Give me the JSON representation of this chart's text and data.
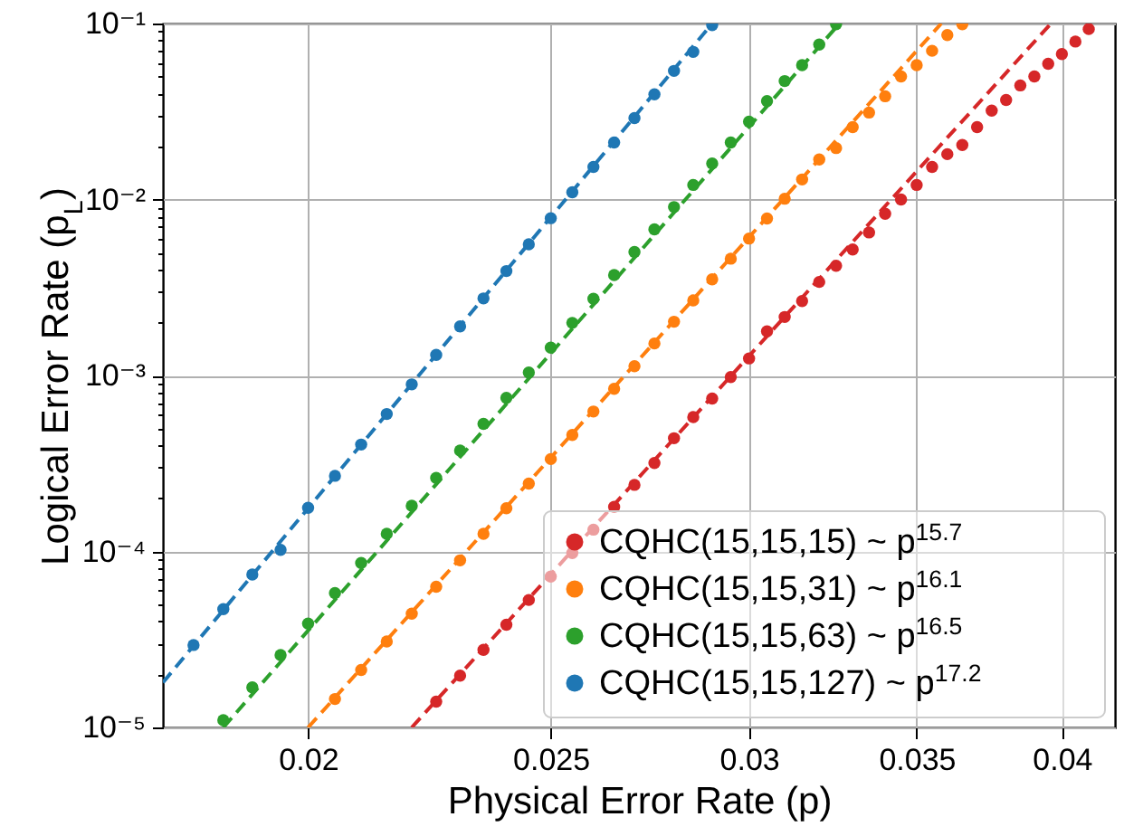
{
  "chart_data": {
    "type": "scatter",
    "xlabel": "Physical Error Rate (p)",
    "ylabel": "Logical Error Rate (p$_{L}$)",
    "log": "xy",
    "grid": true,
    "legend": "bottom right",
    "xlim": [
      0.0175,
      0.042
    ],
    "xticks": [
      0.02,
      0.025,
      0.03,
      0.035,
      0.04
    ],
    "ylim": [
      1e-05,
      0.1
    ],
    "yticks": [
      {
        "value": 1e-05,
        "label": "10⁻⁵"
      },
      {
        "value": 2e-05,
        "label": null
      },
      {
        "value": 3e-05,
        "label": null
      },
      {
        "value": 4e-05,
        "label": null
      },
      {
        "value": 5e-05,
        "label": null
      },
      {
        "value": 6e-05,
        "label": null
      },
      {
        "value": 7e-05,
        "label": null
      },
      {
        "value": 8e-05,
        "label": null
      },
      {
        "value": 9e-05,
        "label": null
      },
      {
        "value": 0.0001,
        "label": "10⁻⁴"
      },
      {
        "value": 0.0002,
        "label": null
      },
      {
        "value": 0.0003,
        "label": null
      },
      {
        "value": 0.0004,
        "label": null
      },
      {
        "value": 0.0005,
        "label": null
      },
      {
        "value": 0.0006,
        "label": null
      },
      {
        "value": 0.0007,
        "label": null
      },
      {
        "value": 0.0008,
        "label": null
      },
      {
        "value": 0.0009,
        "label": null
      },
      {
        "value": 0.001,
        "label": "10⁻³"
      },
      {
        "value": 0.002,
        "label": null
      },
      {
        "value": 0.003,
        "label": null
      },
      {
        "value": 0.004,
        "label": null
      },
      {
        "value": 0.005,
        "label": null
      },
      {
        "value": 0.006,
        "label": null
      },
      {
        "value": 0.007,
        "label": null
      },
      {
        "value": 0.008,
        "label": null
      },
      {
        "value": 0.009,
        "label": null
      },
      {
        "value": 0.01,
        "label": "10⁻²"
      },
      {
        "value": 0.02,
        "label": null
      },
      {
        "value": 0.03,
        "label": null
      },
      {
        "value": 0.04,
        "label": null
      },
      {
        "value": 0.05,
        "label": null
      },
      {
        "value": 0.06,
        "label": null
      },
      {
        "value": 0.07,
        "label": null
      },
      {
        "value": 0.08,
        "label": null
      },
      {
        "value": 0.09,
        "label": null
      },
      {
        "value": 0.1,
        "label": "10⁻¹"
      }
    ],
    "series": [
      {
        "type": "line",
        "line_style": "dashed",
        "color": "#d62728",
        "x": [
          0.022,
          0.0396
        ],
        "values": [
          1e-05,
          0.1
        ]
      },
      {
        "type": "line",
        "line_style": "dashed",
        "color": "#ff7f0e",
        "x": [
          0.02,
          0.0358
        ],
        "values": [
          1e-05,
          0.1
        ]
      },
      {
        "type": "line",
        "line_style": "dashed",
        "color": "#2ca02c",
        "x": [
          0.0185,
          0.0326
        ],
        "values": [
          1e-05,
          0.1
        ]
      },
      {
        "type": "line",
        "line_style": "dashed",
        "color": "#1f77b4",
        "x": [
          0.0175,
          0.029
        ],
        "values": [
          1.8e-05,
          0.1
        ]
      },
      {
        "name": "CQHC(15,15,15)  ~ p$^{15.7}$",
        "marker": "circle",
        "color": "#d62728",
        "x": [
          0.0225,
          0.023,
          0.0235,
          0.024,
          0.0245,
          0.025,
          0.0255,
          0.026,
          0.0265,
          0.027,
          0.0275,
          0.028,
          0.0285,
          0.029,
          0.0295,
          0.03,
          0.0305,
          0.031,
          0.0315,
          0.032,
          0.0325,
          0.033,
          0.0335,
          0.034,
          0.0345,
          0.035,
          0.0355,
          0.036,
          0.0365,
          0.037,
          0.0375,
          0.038,
          0.0385,
          0.039,
          0.0395,
          0.04,
          0.0405,
          0.041
        ],
        "values": [
          1.4e-05,
          1.97e-05,
          2.76e-05,
          3.83e-05,
          5.3e-05,
          7.2e-05,
          9.8e-05,
          0.000133,
          0.000179,
          0.000239,
          0.000318,
          0.00044,
          0.00058,
          0.00074,
          0.00098,
          0.00125,
          0.00178,
          0.00215,
          0.00265,
          0.0034,
          0.0042,
          0.0052,
          0.0065,
          0.0083,
          0.01,
          0.0121,
          0.0153,
          0.0181,
          0.0204,
          0.0258,
          0.032,
          0.0368,
          0.0445,
          0.05,
          0.059,
          0.067,
          0.079,
          0.093
        ]
      },
      {
        "name": "CQHC(15,15,31)  ~ p$^{16.1}$",
        "marker": "circle",
        "color": "#ff7f0e",
        "x": [
          0.0205,
          0.021,
          0.0215,
          0.022,
          0.0225,
          0.023,
          0.0235,
          0.024,
          0.0245,
          0.025,
          0.0255,
          0.026,
          0.0265,
          0.027,
          0.0275,
          0.028,
          0.0285,
          0.029,
          0.0295,
          0.03,
          0.0305,
          0.031,
          0.0315,
          0.032,
          0.0325,
          0.033,
          0.0335,
          0.034,
          0.0345,
          0.035,
          0.0355,
          0.036,
          0.0365
        ],
        "values": [
          1.45e-05,
          2.12e-05,
          3.08e-05,
          4.43e-05,
          6.3e-05,
          8.9e-05,
          0.000126,
          0.000176,
          0.000243,
          0.000335,
          0.000459,
          0.000624,
          0.00084,
          0.00113,
          0.00152,
          0.00202,
          0.00267,
          0.00352,
          0.00461,
          0.006,
          0.0078,
          0.0101,
          0.013,
          0.0169,
          0.0196,
          0.0258,
          0.0312,
          0.0386,
          0.05,
          0.058,
          0.07,
          0.086,
          0.099
        ]
      },
      {
        "name": "CQHC(15,15,63)  ~ p$^{16.5}$",
        "marker": "circle",
        "color": "#2ca02c",
        "x": [
          0.0185,
          0.019,
          0.0195,
          0.02,
          0.0205,
          0.021,
          0.0215,
          0.022,
          0.0225,
          0.023,
          0.0235,
          0.024,
          0.0245,
          0.025,
          0.0255,
          0.026,
          0.0265,
          0.027,
          0.0275,
          0.028,
          0.0285,
          0.029,
          0.0295,
          0.03,
          0.0305,
          0.031,
          0.0315,
          0.032,
          0.0325
        ],
        "values": [
          1.1e-05,
          1.69e-05,
          2.58e-05,
          3.89e-05,
          5.8e-05,
          8.6e-05,
          0.000126,
          0.000182,
          0.000262,
          0.000374,
          0.000531,
          0.000746,
          0.00104,
          0.00144,
          0.00199,
          0.00273,
          0.00372,
          0.00503,
          0.00676,
          0.00906,
          0.0121,
          0.016,
          0.0211,
          0.0277,
          0.0362,
          0.0471,
          0.058,
          0.076,
          0.099
        ]
      },
      {
        "name": "CQHC(15,15,127)  ~ p$^{17.2}$",
        "marker": "circle",
        "color": "#1f77b4",
        "x": [
          0.018,
          0.0185,
          0.019,
          0.0195,
          0.02,
          0.0205,
          0.021,
          0.0215,
          0.022,
          0.0225,
          0.023,
          0.0235,
          0.024,
          0.0245,
          0.025,
          0.0255,
          0.026,
          0.0265,
          0.027,
          0.0275,
          0.028,
          0.0285,
          0.029
        ],
        "values": [
          2.94e-05,
          4.7e-05,
          7.4e-05,
          0.000102,
          0.000177,
          0.000269,
          0.000405,
          0.000604,
          0.00089,
          0.00131,
          0.0019,
          0.00274,
          0.00392,
          0.00556,
          0.00783,
          0.011,
          0.0153,
          0.0211,
          0.029,
          0.0396,
          0.0538,
          0.069,
          0.098
        ]
      }
    ]
  }
}
